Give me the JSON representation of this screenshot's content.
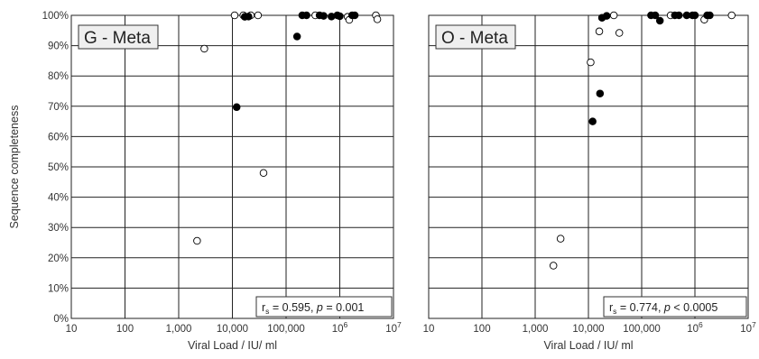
{
  "chart_data": [
    {
      "type": "scatter",
      "title": "G - Meta",
      "xlabel": "Viral Load / IU/ ml",
      "ylabel": "Sequence completeness",
      "xscale": "log",
      "xlim": [
        10,
        10000000
      ],
      "ylim": [
        0,
        100
      ],
      "xticks": [
        "10",
        "100",
        "1,000",
        "10,000",
        "100,000",
        "10^6",
        "10^7"
      ],
      "yticks": [
        "0%",
        "10%",
        "20%",
        "30%",
        "40%",
        "50%",
        "60%",
        "70%",
        "80%",
        "90%",
        "100%"
      ],
      "grid": true,
      "stat": {
        "prefix": "r",
        "sub": "s",
        "eq": " = 0.595, ",
        "p": "p",
        "ptext": " = 0.001"
      },
      "series": [
        {
          "marker": "open",
          "points": [
            [
              2200,
              25.6
            ],
            [
              3000,
              89
            ],
            [
              11000,
              100
            ],
            [
              16000,
              100
            ],
            [
              22000,
              100
            ],
            [
              30000,
              100
            ],
            [
              38000,
              48
            ],
            [
              350000,
              100
            ],
            [
              1400000,
              99.5
            ],
            [
              1500000,
              98.5
            ],
            [
              4700000,
              100
            ],
            [
              5000000,
              98.7
            ]
          ]
        },
        {
          "marker": "filled",
          "points": [
            [
              12000,
              69.7
            ],
            [
              17000,
              99.5
            ],
            [
              20000,
              99.6
            ],
            [
              160000,
              93
            ],
            [
              200000,
              100
            ],
            [
              240000,
              100
            ],
            [
              420000,
              100
            ],
            [
              500000,
              99.8
            ],
            [
              700000,
              99.6
            ],
            [
              900000,
              100
            ],
            [
              1000000,
              99.7
            ],
            [
              1700000,
              100
            ],
            [
              1900000,
              100
            ]
          ]
        }
      ]
    },
    {
      "type": "scatter",
      "title": "O - Meta",
      "xlabel": "Viral Load / IU/ ml",
      "ylabel": "",
      "xscale": "log",
      "xlim": [
        10,
        10000000
      ],
      "ylim": [
        0,
        100
      ],
      "xticks": [
        "10",
        "100",
        "1,000",
        "10,000",
        "100,000",
        "10^6",
        "10^7"
      ],
      "yticks": [],
      "grid": true,
      "stat": {
        "prefix": "r",
        "sub": "s",
        "eq": " = 0.774, ",
        "p": "p",
        "ptext": " < 0.0005"
      },
      "series": [
        {
          "marker": "open",
          "points": [
            [
              2200,
              17.4
            ],
            [
              3000,
              26.3
            ],
            [
              11000,
              84.5
            ],
            [
              16000,
              94.7
            ],
            [
              30000,
              100
            ],
            [
              38000,
              94.2
            ],
            [
              350000,
              100
            ],
            [
              1500000,
              98.6
            ],
            [
              4900000,
              100
            ]
          ]
        },
        {
          "marker": "filled",
          "points": [
            [
              12000,
              65
            ],
            [
              16500,
              74.2
            ],
            [
              18000,
              99.2
            ],
            [
              22000,
              99.8
            ],
            [
              150000,
              100
            ],
            [
              180000,
              100
            ],
            [
              220000,
              98.2
            ],
            [
              420000,
              100
            ],
            [
              500000,
              100
            ],
            [
              700000,
              100
            ],
            [
              900000,
              100
            ],
            [
              1000000,
              100
            ],
            [
              1700000,
              100
            ],
            [
              1900000,
              100
            ]
          ]
        }
      ]
    }
  ]
}
